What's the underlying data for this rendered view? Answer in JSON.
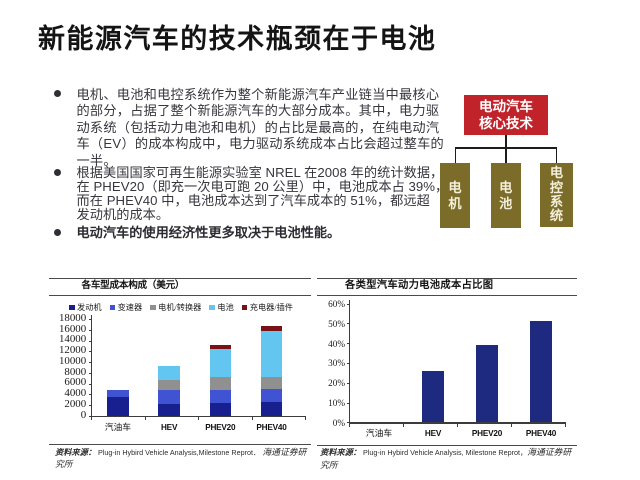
{
  "slide": {
    "title": "新能源汽车的技术瓶颈在于电池"
  },
  "bullets": [
    {
      "bold": false,
      "lines": [
        "电机、电池和电控系统作为整个新能源汽车产业链当中最核心",
        "的部分，占据了整个新能源汽车的大部分成本。其中，电力驱",
        "动系统（包括动力电池和电机）的占比是最高的，在纯电动汽",
        "车（EV）的成本构成中，电力驱动系统成本占比会超过整车的",
        "一半。"
      ]
    },
    {
      "bold": false,
      "lines": [
        "根据美国国家可再生能源实验室 NREL 在2008 年的统计数据，",
        "在 PHEV20（即充一次电可跑 20 公里）中，电池成本占 39%，",
        "而在 PHEV40 中，电池成本达到了汽车成本的 51%，都远超",
        "发动机的成本。"
      ]
    },
    {
      "bold": true,
      "lines": [
        "电动汽车的使用经济性更多取决于电池性能。"
      ]
    }
  ],
  "diagram": {
    "root": {
      "label_line1": "电动汽车",
      "label_line2": "核心技术",
      "color": "#c0232a"
    },
    "children": [
      {
        "label": "电机",
        "color": "#7b6c29"
      },
      {
        "label": "电池",
        "color": "#7b6c29"
      },
      {
        "label": "电控系统",
        "color": "#7b6c29"
      }
    ]
  },
  "chart_data": [
    {
      "type": "bar",
      "stacked": true,
      "title": "各车型成本构成（美元）",
      "categories": [
        "汽油车",
        "HEV",
        "PHEV20",
        "PHEV40"
      ],
      "series": [
        {
          "name": "发动机",
          "color": "#181f8f",
          "values": [
            3400,
            2100,
            2400,
            2500
          ]
        },
        {
          "name": "变速器",
          "color": "#4053d3",
          "values": [
            1300,
            2700,
            2400,
            2400
          ]
        },
        {
          "name": "电机/转换器",
          "color": "#909090",
          "values": [
            0,
            1800,
            2500,
            2400
          ]
        },
        {
          "name": "电池",
          "color": "#63c6f0",
          "values": [
            0,
            2700,
            5100,
            8500
          ]
        },
        {
          "name": "充电器/插件",
          "color": "#7a1114",
          "values": [
            0,
            0,
            800,
            1000
          ]
        }
      ],
      "ylim": [
        0,
        18000
      ],
      "yticks": [
        0,
        2000,
        4000,
        6000,
        8000,
        10000,
        12000,
        14000,
        16000,
        18000
      ],
      "grid": false,
      "legend_position": "top",
      "source": {
        "seg_label": "资料来源：",
        "seg_latin": " Plug-in Hybird Vehicle Analysis,Milestone Reprot．",
        "seg_cjk": " 海通证券研",
        "seg_wrap": "究所"
      }
    },
    {
      "type": "bar",
      "stacked": false,
      "title": "各类型汽车动力电池成本占比图",
      "categories": [
        "汽油车",
        "HEV",
        "PHEV20",
        "PHEV40"
      ],
      "values": [
        0,
        26,
        39,
        51
      ],
      "bar_color": "#1d2a80",
      "ylim": [
        0,
        60
      ],
      "yticks": [
        "0%",
        "10%",
        "20%",
        "30%",
        "40%",
        "50%",
        "60%"
      ],
      "grid": false,
      "source": {
        "seg_label": "资料来源：",
        "seg_latin": " Plug-in Hybird Vehicle Analysis, Milestone Reprot，",
        "seg_cjk": "海通证券研",
        "seg_wrap": "究所"
      }
    }
  ]
}
